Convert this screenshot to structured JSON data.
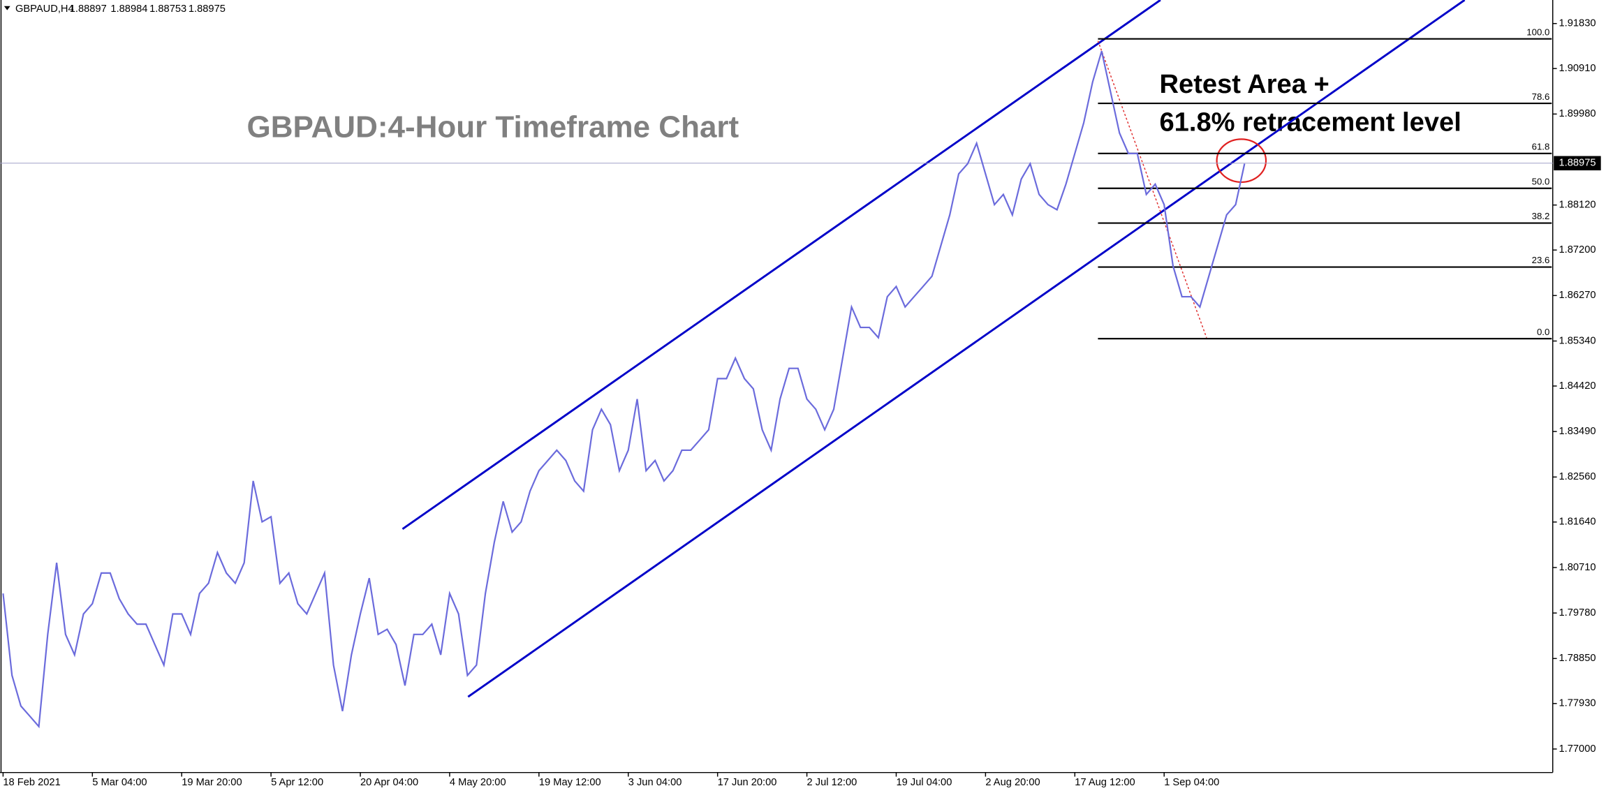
{
  "chart_data": {
    "type": "line",
    "header": {
      "symbol": "GBPAUD,H4",
      "ohlc": [
        "1.88897",
        "1.88984",
        "1.88753",
        "1.88975"
      ]
    },
    "title": "GBPAUD:4-Hour Timeframe Chart",
    "annotations": [
      "Retest Area +",
      "61.8% retracement level"
    ],
    "categories": [
      "18 Feb 2021",
      null,
      null,
      null,
      null,
      null,
      null,
      null,
      null,
      null,
      "5 Mar 04:00",
      null,
      null,
      null,
      null,
      null,
      null,
      null,
      null,
      null,
      "19 Mar 20:00",
      null,
      null,
      null,
      null,
      null,
      null,
      null,
      null,
      null,
      "5 Apr 12:00",
      null,
      null,
      null,
      null,
      null,
      null,
      null,
      null,
      null,
      "20 Apr 04:00",
      null,
      null,
      null,
      null,
      null,
      null,
      null,
      null,
      null,
      "4 May 20:00",
      null,
      null,
      null,
      null,
      null,
      null,
      null,
      null,
      null,
      "19 May 12:00",
      null,
      null,
      null,
      null,
      null,
      null,
      null,
      null,
      null,
      "3 Jun 04:00",
      null,
      null,
      null,
      null,
      null,
      null,
      null,
      null,
      null,
      "17 Jun 20:00",
      null,
      null,
      null,
      null,
      null,
      null,
      null,
      null,
      null,
      "2 Jul 12:00",
      null,
      null,
      null,
      null,
      null,
      null,
      null,
      null,
      null,
      "19 Jul 04:00",
      null,
      null,
      null,
      null,
      null,
      null,
      null,
      null,
      null,
      "2 Aug 20:00",
      null,
      null,
      null,
      null,
      null,
      null,
      null,
      null,
      null,
      "17 Aug 12:00",
      null,
      null,
      null,
      null,
      null,
      null,
      null,
      null,
      null,
      "1 Sep 04:00",
      null,
      null,
      null,
      null,
      null,
      null,
      null,
      null,
      null
    ],
    "values": [
      1.80179,
      1.78506,
      1.77878,
      1.77669,
      1.7746,
      1.79343,
      1.80807,
      1.79343,
      1.78924,
      1.79761,
      1.7997,
      1.80598,
      1.80598,
      1.80075,
      1.79761,
      1.79552,
      1.79552,
      1.79133,
      1.78715,
      1.79761,
      1.79761,
      1.79343,
      1.80179,
      1.80388,
      1.81016,
      1.80598,
      1.80388,
      1.80807,
      1.8248,
      1.81643,
      1.81748,
      1.80388,
      1.80598,
      1.7997,
      1.79761,
      1.80179,
      1.80598,
      1.78715,
      1.77774,
      1.78924,
      1.79761,
      1.80493,
      1.79343,
      1.79447,
      1.79133,
      1.78297,
      1.79343,
      1.79343,
      1.79552,
      1.78924,
      1.80179,
      1.79761,
      1.78506,
      1.78715,
      1.80179,
      1.81225,
      1.82062,
      1.81434,
      1.81643,
      1.82271,
      1.82689,
      1.82898,
      1.83108,
      1.82898,
      1.8248,
      1.82271,
      1.83526,
      1.83944,
      1.83631,
      1.82689,
      1.83108,
      1.84153,
      1.82689,
      1.82898,
      1.8248,
      1.82689,
      1.83108,
      1.83108,
      1.83317,
      1.83526,
      1.84572,
      1.84572,
      1.8499,
      1.84572,
      1.84363,
      1.83526,
      1.83108,
      1.84153,
      1.84781,
      1.84781,
      1.84153,
      1.83944,
      1.83526,
      1.83944,
      1.8499,
      1.86036,
      1.85618,
      1.85618,
      1.85408,
      1.86245,
      1.86454,
      1.86036,
      1.86245,
      1.86454,
      1.86664,
      1.87291,
      1.87919,
      1.88755,
      1.88964,
      1.89383,
      1.88755,
      1.88128,
      1.88337,
      1.87919,
      1.88651,
      1.88964,
      1.88337,
      1.88128,
      1.88023,
      1.88546,
      1.89174,
      1.89801,
      1.90638,
      1.91265,
      1.90429,
      1.89592,
      1.89174,
      1.89174,
      1.88337,
      1.88546,
      1.88128,
      1.86873,
      1.86245,
      1.86245,
      1.86036,
      1.86664,
      1.87291,
      1.87919,
      1.88128,
      1.88964
    ],
    "color": "#6b6bdc",
    "ylim": [
      1.76519,
      1.92311
    ],
    "yticks": [
      {
        "value": 1.77,
        "label": "1.77000"
      },
      {
        "value": 1.7793,
        "label": "1.77930"
      },
      {
        "value": 1.7885,
        "label": "1.78850"
      },
      {
        "value": 1.7978,
        "label": "1.79780"
      },
      {
        "value": 1.8071,
        "label": "1.80710"
      },
      {
        "value": 1.8164,
        "label": "1.81640"
      },
      {
        "value": 1.8256,
        "label": "1.82560"
      },
      {
        "value": 1.8349,
        "label": "1.83490"
      },
      {
        "value": 1.8442,
        "label": "1.84420"
      },
      {
        "value": 1.8534,
        "label": "1.85340"
      },
      {
        "value": 1.8627,
        "label": "1.86270"
      },
      {
        "value": 1.872,
        "label": "1.87200"
      },
      {
        "value": 1.8812,
        "label": "1.88120"
      },
      {
        "value": 1.8998,
        "label": "1.89980"
      },
      {
        "value": 1.9091,
        "label": "1.90910"
      },
      {
        "value": 1.9183,
        "label": "1.91830"
      }
    ],
    "fib_levels": [
      {
        "value": 1.91516,
        "label": "100.0"
      },
      {
        "value": 1.90198,
        "label": "78.6"
      },
      {
        "value": 1.89174,
        "label": "61.8"
      },
      {
        "value": 1.88462,
        "label": "50.0"
      },
      {
        "value": 1.87751,
        "label": "38.2"
      },
      {
        "value": 1.86852,
        "label": "23.6"
      },
      {
        "value": 1.85388,
        "label": "0.0"
      }
    ],
    "last_price": {
      "value": 1.88975,
      "label": "1.88975"
    }
  }
}
